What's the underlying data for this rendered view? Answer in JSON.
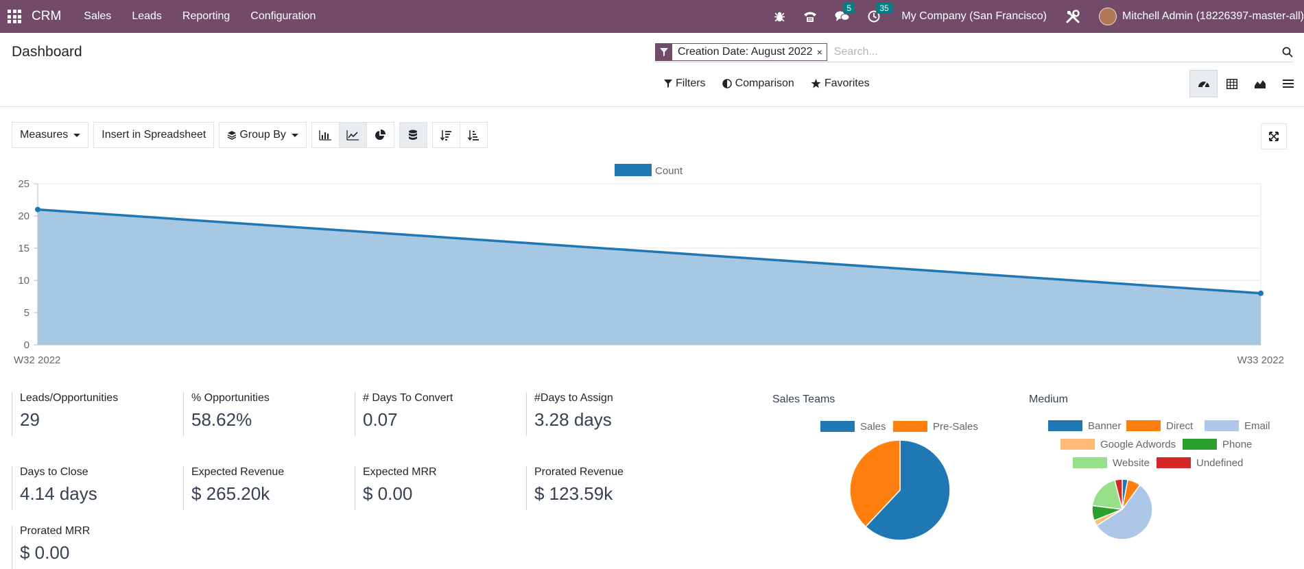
{
  "topbar": {
    "brand": "CRM",
    "menu": [
      "Sales",
      "Leads",
      "Reporting",
      "Configuration"
    ],
    "messages_count": "5",
    "activities_count": "35",
    "company": "My Company (San Francisco)",
    "user": "Mitchell Admin (18226397-master-all)"
  },
  "control_panel": {
    "title": "Dashboard",
    "facet": "Creation Date: August 2022",
    "facet_remove": "×",
    "search_placeholder": "Search...",
    "filters": "Filters",
    "comparison": "Comparison",
    "favorites": "Favorites"
  },
  "toolbar": {
    "measures": "Measures",
    "insert": "Insert in Spreadsheet",
    "group_by": "Group By"
  },
  "chart_data": [
    {
      "type": "area",
      "x": [
        "W32 2022",
        "W33 2022"
      ],
      "series": [
        {
          "name": "Count",
          "values": [
            21,
            8
          ],
          "color": "#1f77b4"
        }
      ],
      "ylim": [
        0,
        25
      ],
      "yticks": [
        0,
        5,
        10,
        15,
        20,
        25
      ],
      "grid": true,
      "legend": "top-center"
    },
    {
      "type": "pie",
      "title": "Sales Teams",
      "categories": [
        "Sales",
        "Pre-Sales"
      ],
      "values": [
        62,
        38
      ],
      "colors": [
        "#1f77b4",
        "#ff7f0e"
      ],
      "legend": "top"
    },
    {
      "type": "pie",
      "title": "Medium",
      "categories": [
        "Banner",
        "Direct",
        "Email",
        "Google Adwords",
        "Phone",
        "Website",
        "Undefined"
      ],
      "values": [
        3,
        7,
        56,
        3,
        8,
        19,
        4
      ],
      "colors": [
        "#1f77b4",
        "#ff7f0e",
        "#aec7e8",
        "#ffbb78",
        "#2ca02c",
        "#98df8a",
        "#d62728"
      ],
      "legend": "top"
    }
  ],
  "stats": [
    {
      "label": "Leads/Opportunities",
      "value": "29"
    },
    {
      "label": "% Opportunities",
      "value": "58.62%"
    },
    {
      "label": "# Days To Convert",
      "value": "0.07"
    },
    {
      "label": "#Days to Assign",
      "value": "3.28 days"
    },
    {
      "label": "Days to Close",
      "value": "4.14 days"
    },
    {
      "label": "Expected Revenue",
      "value": "$ 265.20k"
    },
    {
      "label": "Expected MRR",
      "value": "$ 0.00"
    },
    {
      "label": "Prorated Revenue",
      "value": "$ 123.59k"
    },
    {
      "label": "Prorated MRR",
      "value": "$ 0.00"
    }
  ]
}
